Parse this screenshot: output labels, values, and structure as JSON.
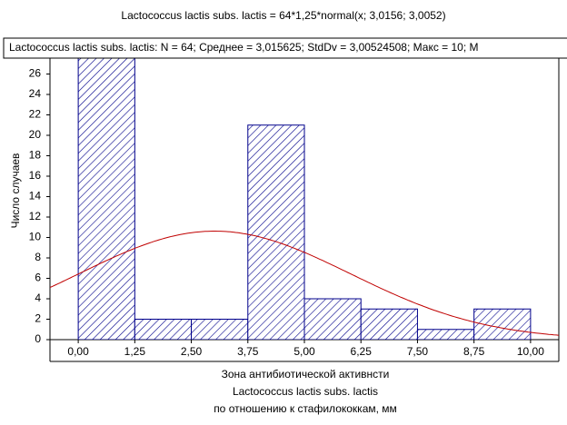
{
  "chart_data": {
    "type": "histogram",
    "title": "Lactococcus lactis subs. lactis  = 64*1,25*normal(x; 3,0156; 3,0052)",
    "info": "Lactococcus lactis subs. lactis:   N = 64; Среднее = 3,015625; StdDv = 3,00524508; Макс = 10; M",
    "y_label": "Число случаев",
    "x_label": [
      "Зона антибиотической активнсти",
      "Lactococcus lactis subs. lactis",
      "по отношению к стафилококкам, мм"
    ],
    "bins": [
      0,
      1.25,
      2.5,
      3.75,
      5,
      6.25,
      7.5,
      8.75,
      10
    ],
    "counts": [
      28,
      2,
      2,
      21,
      4,
      3,
      1,
      3
    ],
    "color": "#00008b",
    "fit": {
      "n": 64,
      "bin_width": 1.25,
      "mean": 3.0156,
      "sd": 3.0052,
      "color": "#c00000"
    },
    "xlim": [
      -0.625,
      10.625
    ],
    "ylim": [
      0,
      28
    ],
    "xticks": [
      {
        "value": 0,
        "label": "0,00"
      },
      {
        "value": 1.25,
        "label": "1,25"
      },
      {
        "value": 2.5,
        "label": "2,50"
      },
      {
        "value": 3.75,
        "label": "3,75"
      },
      {
        "value": 5,
        "label": "5,00"
      },
      {
        "value": 6.25,
        "label": "6,25"
      },
      {
        "value": 7.5,
        "label": "7,50"
      },
      {
        "value": 8.75,
        "label": "8,75"
      },
      {
        "value": 10,
        "label": "10,00"
      }
    ],
    "yticks": [
      0,
      2,
      4,
      6,
      8,
      10,
      12,
      14,
      16,
      18,
      20,
      22,
      24,
      26
    ]
  }
}
